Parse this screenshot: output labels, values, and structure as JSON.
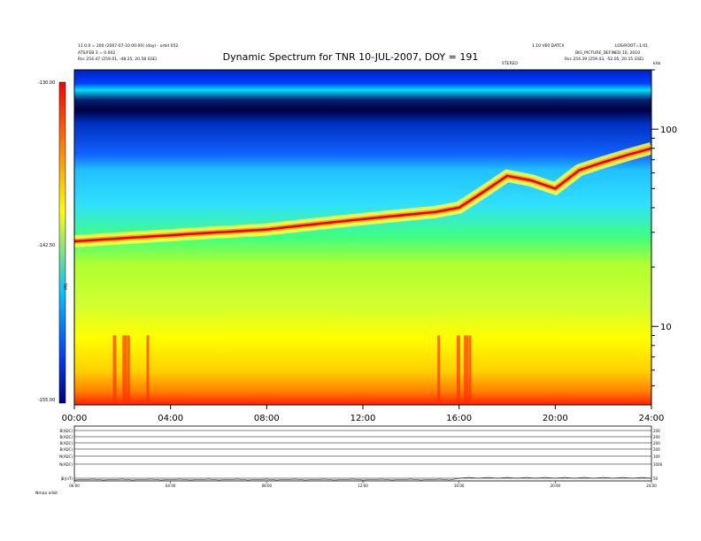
{
  "title": "Dynamic Spectrum for TNR 10-JUL-2007, DOY = 191",
  "header": {
    "left_line1": "11 0.0 = 200 (2007-07-10 00:00) (day) - orbit 052",
    "left_line2": "ATS/FEB 3 = 0.002",
    "left_line3": "Rsc   254.47 (259.01, -48.25, 20.58 GSE)",
    "right_line1": "1.10 V60 DATCX",
    "right_line2": "LOS/ROOT=1.01",
    "right_line3": "BIG_PICTURE_DEFINED 10, 2010",
    "right_line4": "Rsc   254.39 (259.43, -52.05, 20.15 GSE)",
    "dotted_marker": "STEREO",
    "freq_unit": "kHz"
  },
  "colorbar": {
    "title": "TNR",
    "top_label": "-130.00",
    "mid_label": "-142.50",
    "bottom_label": "-155.00",
    "colors": [
      "#ff0000",
      "#ff8000",
      "#ffff00",
      "#00c8ff",
      "#0040ff",
      "#000080"
    ]
  },
  "panels": {
    "labels": [
      "B(ADC)",
      "B(ADC)",
      "B(ADC)",
      "B(ADC)",
      "N(ADC)",
      "N(ADC)",
      "|B|(nT)"
    ],
    "right_labels": [
      "200",
      "200",
      "200",
      "200",
      "100",
      "1000",
      "50"
    ],
    "bottom_left": "Nmax   orbit"
  },
  "chart_data": {
    "type": "heatmap",
    "title": "Dynamic Spectrum for TNR 10-JUL-2007, DOY = 191",
    "xlabel": "",
    "ylabel": "kHz",
    "x_ticks": [
      "00:00",
      "04:00",
      "08:00",
      "12:00",
      "16:00",
      "20:00",
      "24:00"
    ],
    "x_range_hours": [
      0,
      24
    ],
    "y_scale": "log",
    "y_ticks": [
      10,
      100
    ],
    "y_range_khz": [
      4,
      200
    ],
    "color_scale_range": [
      -155,
      -130
    ],
    "plasma_line": {
      "hours": [
        0,
        1,
        2,
        3,
        4,
        5,
        6,
        7,
        8,
        9,
        10,
        11,
        12,
        13,
        14,
        15,
        16,
        17,
        18,
        19,
        20,
        21,
        22,
        23,
        24
      ],
      "khz": [
        27,
        27.5,
        28,
        28.5,
        29,
        29.5,
        30,
        30.5,
        31,
        32,
        33,
        34,
        35,
        36,
        37,
        38,
        40,
        48,
        58,
        55,
        50,
        62,
        68,
        74,
        80
      ]
    },
    "bottom_panel_x_ticks": [
      "00:00",
      "04:00",
      "08:00",
      "12:00",
      "16:00",
      "20:00",
      "24:00"
    ]
  }
}
